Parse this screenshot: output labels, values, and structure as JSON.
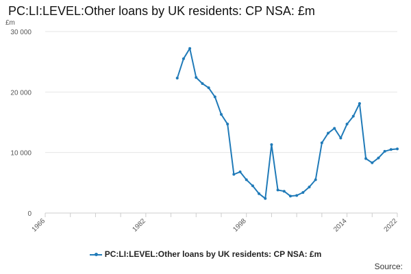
{
  "title": "PC:LI:LEVEL:Other loans by UK residents: CP NSA: £m",
  "source_label": "Source:",
  "colors": {
    "series": "#1f7ab8",
    "grid": "#e6e6e6",
    "axis": "#cccccc"
  },
  "chart_data": {
    "type": "line",
    "ylabel": "£m",
    "xlabel": "",
    "xlim": [
      1966,
      2022
    ],
    "ylim": [
      0,
      30000
    ],
    "x_ticks": [
      1966,
      1982,
      1998,
      2014,
      2022
    ],
    "y_ticks": [
      0,
      10000,
      20000,
      30000
    ],
    "y_tick_labels": [
      "0",
      "10 000",
      "20 000",
      "30 000"
    ],
    "grid": true,
    "legend_position": "bottom",
    "series": [
      {
        "name": "PC:LI:LEVEL:Other loans by UK residents: CP NSA: £m",
        "x": [
          1987,
          1988,
          1989,
          1990,
          1991,
          1992,
          1993,
          1994,
          1995,
          1996,
          1997,
          1998,
          1999,
          2000,
          2001,
          2002,
          2003,
          2004,
          2005,
          2006,
          2007,
          2008,
          2009,
          2010,
          2011,
          2012,
          2013,
          2014,
          2015,
          2016,
          2017,
          2018,
          2019,
          2020,
          2021,
          2022
        ],
        "values": [
          22300,
          25500,
          27200,
          22400,
          21400,
          20700,
          19200,
          16300,
          14700,
          6400,
          6800,
          5500,
          4500,
          3200,
          2400,
          11300,
          3800,
          3600,
          2800,
          2900,
          3400,
          4300,
          5500,
          11600,
          13200,
          14000,
          12400,
          14700,
          16000,
          18100,
          9000,
          8300,
          9100,
          10200,
          10500,
          10600
        ]
      }
    ]
  }
}
